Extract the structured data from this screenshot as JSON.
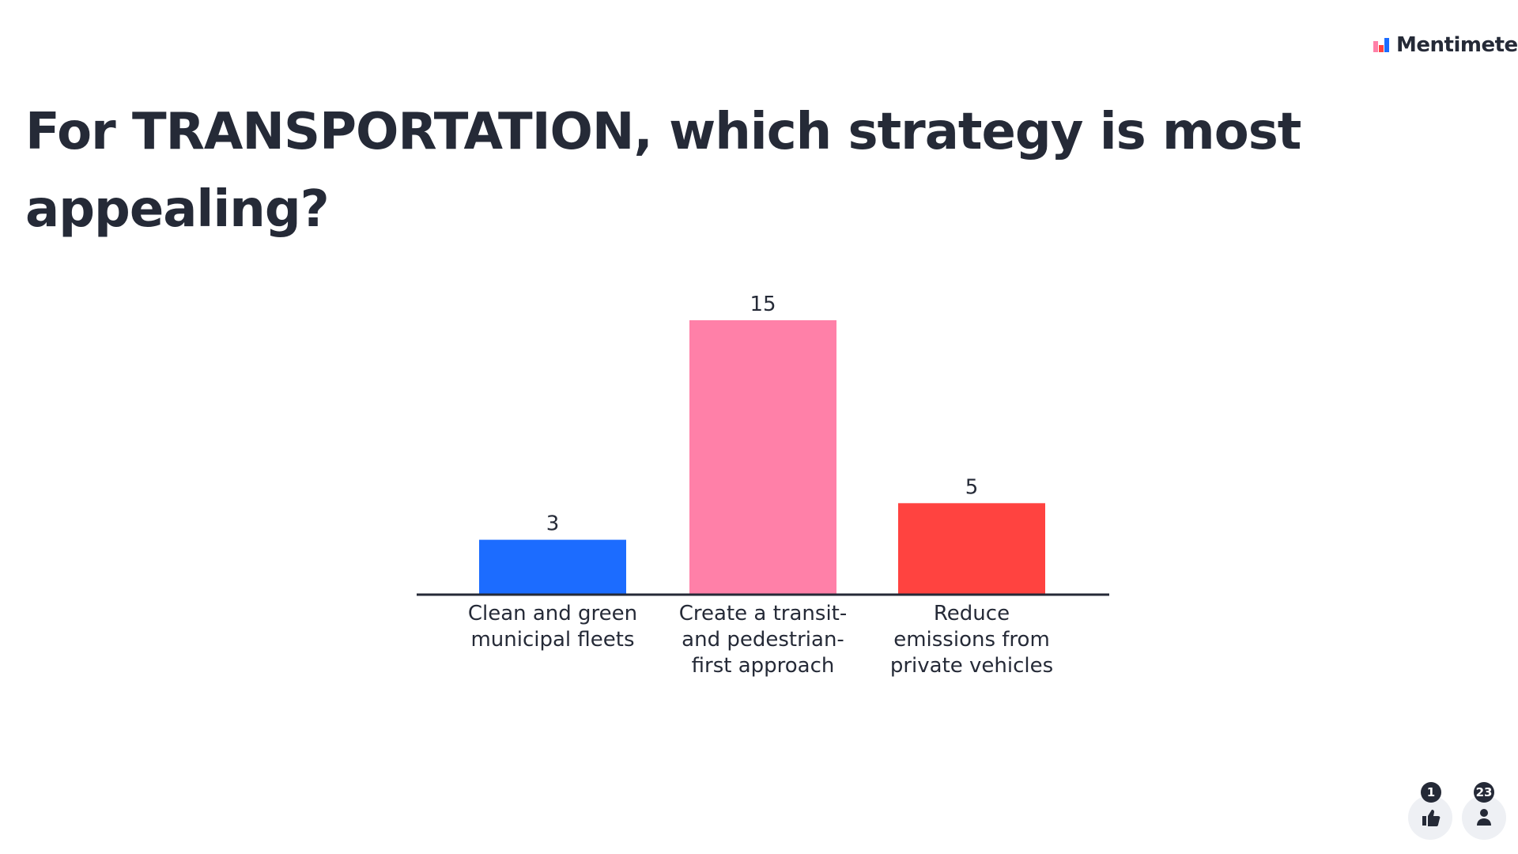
{
  "brand": "Mentimeter",
  "reactions": 1,
  "participants": 23,
  "chart_data": {
    "type": "bar",
    "title": "For TRANSPORTATION, which strategy is most appealing?",
    "categories": [
      "Clean and green municipal fleets",
      "Create a transit- and pedestrian-first approach",
      "Reduce emissions from private vehicles"
    ],
    "values": [
      3,
      15,
      5
    ],
    "colors": [
      "#1c6cff",
      "#ff80a8",
      "#ff4340"
    ]
  }
}
